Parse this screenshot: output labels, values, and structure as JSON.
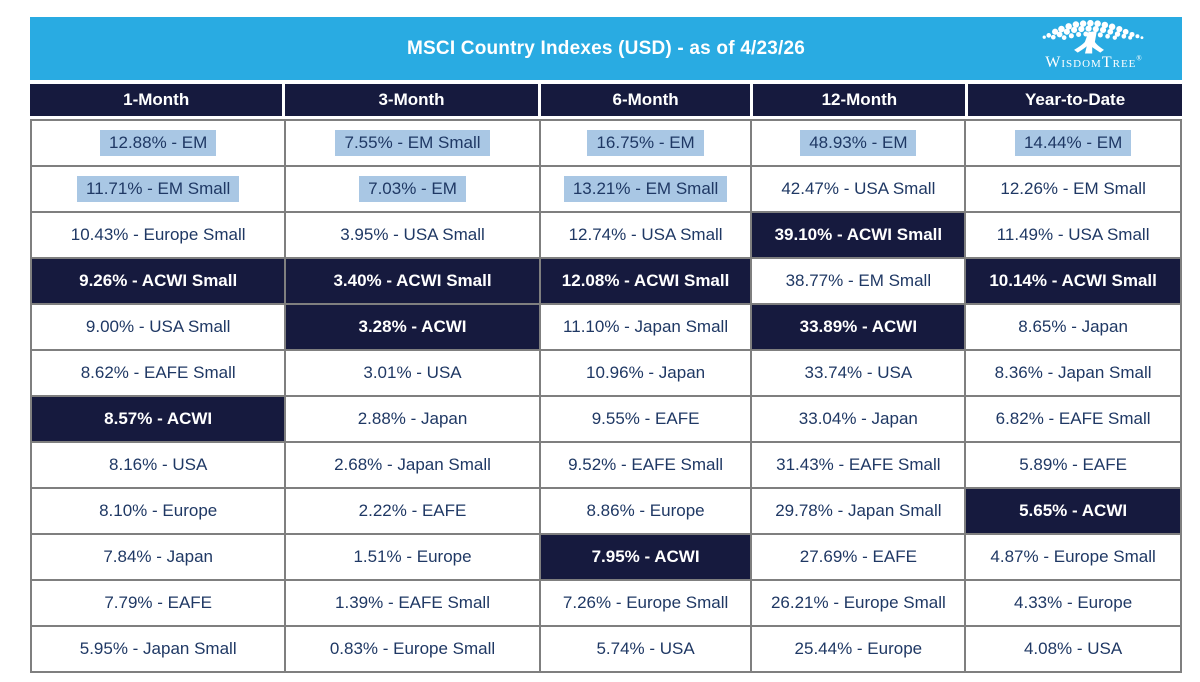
{
  "title": "MSCI Country Indexes (USD) - as of 4/23/26",
  "logo": {
    "wordmark": "WisdomTree",
    "registered": "®"
  },
  "colors": {
    "accent_cyan": "#29ABE2",
    "navy": "#161A3E",
    "highlight_blue": "#A9C7E4",
    "grid_gray": "#7F7F7F",
    "text_blue": "#1F3864"
  },
  "chart_data": {
    "type": "table",
    "title": "MSCI Country Indexes (USD) - as of 4/23/26",
    "columns": [
      "1-Month",
      "3-Month",
      "6-Month",
      "12-Month",
      "Year-to-Date"
    ],
    "style_legend": {
      "highlight": "light-blue text highlight (EM leaders)",
      "navy": "dark navy cell with white bold text (ACWI benchmarks)",
      "plain": "white cell"
    },
    "series": [
      {
        "name": "1-Month",
        "cells": [
          {
            "value": "12.88%",
            "index": "EM",
            "style": "highlight"
          },
          {
            "value": "11.71%",
            "index": "EM Small",
            "style": "highlight"
          },
          {
            "value": "10.43%",
            "index": "Europe Small",
            "style": "plain"
          },
          {
            "value": "9.26%",
            "index": "ACWI Small",
            "style": "navy"
          },
          {
            "value": "9.00%",
            "index": "USA Small",
            "style": "plain"
          },
          {
            "value": "8.62%",
            "index": "EAFE Small",
            "style": "plain"
          },
          {
            "value": "8.57%",
            "index": "ACWI",
            "style": "navy"
          },
          {
            "value": "8.16%",
            "index": "USA",
            "style": "plain"
          },
          {
            "value": "8.10%",
            "index": "Europe",
            "style": "plain"
          },
          {
            "value": "7.84%",
            "index": "Japan",
            "style": "plain"
          },
          {
            "value": "7.79%",
            "index": "EAFE",
            "style": "plain"
          },
          {
            "value": "5.95%",
            "index": "Japan Small",
            "style": "plain"
          }
        ]
      },
      {
        "name": "3-Month",
        "cells": [
          {
            "value": "7.55%",
            "index": "EM Small",
            "style": "highlight"
          },
          {
            "value": "7.03%",
            "index": "EM",
            "style": "highlight"
          },
          {
            "value": "3.95%",
            "index": "USA Small",
            "style": "plain"
          },
          {
            "value": "3.40%",
            "index": "ACWI Small",
            "style": "navy"
          },
          {
            "value": "3.28%",
            "index": "ACWI",
            "style": "navy"
          },
          {
            "value": "3.01%",
            "index": "USA",
            "style": "plain"
          },
          {
            "value": "2.88%",
            "index": "Japan",
            "style": "plain"
          },
          {
            "value": "2.68%",
            "index": "Japan Small",
            "style": "plain"
          },
          {
            "value": "2.22%",
            "index": "EAFE",
            "style": "plain"
          },
          {
            "value": "1.51%",
            "index": "Europe",
            "style": "plain"
          },
          {
            "value": "1.39%",
            "index": "EAFE Small",
            "style": "plain"
          },
          {
            "value": "0.83%",
            "index": "Europe Small",
            "style": "plain"
          }
        ]
      },
      {
        "name": "6-Month",
        "cells": [
          {
            "value": "16.75%",
            "index": "EM",
            "style": "highlight"
          },
          {
            "value": "13.21%",
            "index": "EM Small",
            "style": "highlight"
          },
          {
            "value": "12.74%",
            "index": "USA Small",
            "style": "plain"
          },
          {
            "value": "12.08%",
            "index": "ACWI Small",
            "style": "navy"
          },
          {
            "value": "11.10%",
            "index": "Japan Small",
            "style": "plain"
          },
          {
            "value": "10.96%",
            "index": "Japan",
            "style": "plain"
          },
          {
            "value": "9.55%",
            "index": "EAFE",
            "style": "plain"
          },
          {
            "value": "9.52%",
            "index": "EAFE Small",
            "style": "plain"
          },
          {
            "value": "8.86%",
            "index": "Europe",
            "style": "plain"
          },
          {
            "value": "7.95%",
            "index": "ACWI",
            "style": "navy"
          },
          {
            "value": "7.26%",
            "index": "Europe Small",
            "style": "plain"
          },
          {
            "value": "5.74%",
            "index": "USA",
            "style": "plain"
          }
        ]
      },
      {
        "name": "12-Month",
        "cells": [
          {
            "value": "48.93%",
            "index": "EM",
            "style": "highlight"
          },
          {
            "value": "42.47%",
            "index": "USA Small",
            "style": "plain"
          },
          {
            "value": "39.10%",
            "index": "ACWI Small",
            "style": "navy"
          },
          {
            "value": "38.77%",
            "index": "EM Small",
            "style": "plain"
          },
          {
            "value": "33.89%",
            "index": "ACWI",
            "style": "navy"
          },
          {
            "value": "33.74%",
            "index": "USA",
            "style": "plain"
          },
          {
            "value": "33.04%",
            "index": "Japan",
            "style": "plain"
          },
          {
            "value": "31.43%",
            "index": "EAFE Small",
            "style": "plain"
          },
          {
            "value": "29.78%",
            "index": "Japan Small",
            "style": "plain"
          },
          {
            "value": "27.69%",
            "index": "EAFE",
            "style": "plain"
          },
          {
            "value": "26.21%",
            "index": "Europe Small",
            "style": "plain"
          },
          {
            "value": "25.44%",
            "index": "Europe",
            "style": "plain"
          }
        ]
      },
      {
        "name": "Year-to-Date",
        "cells": [
          {
            "value": "14.44%",
            "index": "EM",
            "style": "highlight"
          },
          {
            "value": "12.26%",
            "index": "EM Small",
            "style": "plain"
          },
          {
            "value": "11.49%",
            "index": "USA Small",
            "style": "plain"
          },
          {
            "value": "10.14%",
            "index": "ACWI Small",
            "style": "navy"
          },
          {
            "value": "8.65%",
            "index": "Japan",
            "style": "plain"
          },
          {
            "value": "8.36%",
            "index": "Japan Small",
            "style": "plain"
          },
          {
            "value": "6.82%",
            "index": "EAFE Small",
            "style": "plain"
          },
          {
            "value": "5.89%",
            "index": "EAFE",
            "style": "plain"
          },
          {
            "value": "5.65%",
            "index": "ACWI",
            "style": "navy"
          },
          {
            "value": "4.87%",
            "index": "Europe Small",
            "style": "plain"
          },
          {
            "value": "4.33%",
            "index": "Europe",
            "style": "plain"
          },
          {
            "value": "4.08%",
            "index": "USA",
            "style": "plain"
          }
        ]
      }
    ]
  }
}
